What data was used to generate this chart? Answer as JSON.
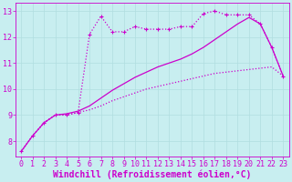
{
  "title": "",
  "xlabel": "Windchill (Refroidissement éolien,°C)",
  "ylabel": "",
  "bg_color": "#c8eef0",
  "grid_color": "#b0dde0",
  "line_color": "#cc00cc",
  "xlim": [
    -0.5,
    23.5
  ],
  "ylim": [
    7.4,
    13.3
  ],
  "xticks": [
    0,
    1,
    2,
    3,
    4,
    5,
    6,
    7,
    8,
    9,
    10,
    11,
    12,
    13,
    14,
    15,
    16,
    17,
    18,
    19,
    20,
    21,
    22,
    23
  ],
  "yticks": [
    8,
    9,
    10,
    11,
    12,
    13
  ],
  "curve1_x": [
    0,
    1,
    2,
    3,
    4,
    5,
    6,
    7,
    8,
    9,
    10,
    11,
    12,
    13,
    14,
    15,
    16,
    17,
    18,
    19,
    20,
    21,
    22,
    23
  ],
  "curve1_y": [
    7.6,
    8.2,
    8.7,
    9.0,
    9.0,
    9.1,
    12.1,
    12.8,
    12.2,
    12.2,
    12.4,
    12.3,
    12.3,
    12.3,
    12.4,
    12.4,
    12.9,
    13.0,
    12.85,
    12.85,
    12.85,
    12.5,
    11.6,
    10.5
  ],
  "curve2_x": [
    0,
    1,
    2,
    3,
    4,
    5,
    6,
    7,
    8,
    9,
    10,
    11,
    12,
    13,
    14,
    15,
    16,
    17,
    18,
    19,
    20,
    21,
    22,
    23
  ],
  "curve2_y": [
    7.6,
    8.2,
    8.7,
    9.0,
    9.0,
    9.1,
    9.2,
    9.35,
    9.55,
    9.7,
    9.85,
    10.0,
    10.1,
    10.2,
    10.3,
    10.4,
    10.5,
    10.6,
    10.65,
    10.7,
    10.75,
    10.8,
    10.85,
    10.5
  ],
  "curve3_x": [
    0,
    1,
    2,
    3,
    4,
    5,
    6,
    7,
    8,
    9,
    10,
    11,
    12,
    13,
    14,
    15,
    16,
    17,
    18,
    19,
    20,
    21,
    22,
    23
  ],
  "curve3_y": [
    7.6,
    8.2,
    8.7,
    9.0,
    9.05,
    9.15,
    9.35,
    9.65,
    9.95,
    10.2,
    10.45,
    10.65,
    10.85,
    11.0,
    11.15,
    11.35,
    11.6,
    11.9,
    12.2,
    12.5,
    12.75,
    12.5,
    11.6,
    10.5
  ],
  "tick_fontsize": 6,
  "xlabel_fontsize": 7,
  "lw": 0.9
}
